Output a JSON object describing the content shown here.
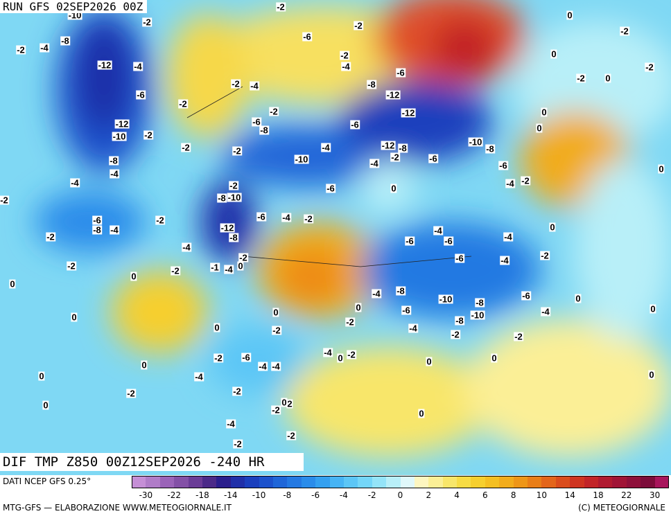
{
  "header": {
    "run": "RUN GFS 02SEP2026 00Z",
    "product": "DIF TMP Z850 00Z12SEP2026 -240 HR"
  },
  "footer": {
    "source": "DATI NCEP GFS 0.25°",
    "credit": "MTG-GFS — ELABORAZIONE WWW.METEOGIORNALE.IT",
    "copyright": "(C) METEOGIORNALE"
  },
  "colorbar": {
    "colors": [
      "#c58fd6",
      "#b07cc8",
      "#9a63b8",
      "#8350a6",
      "#6a3c96",
      "#4b2a88",
      "#2a1e8c",
      "#1f2fa8",
      "#1a3fbd",
      "#1c52cc",
      "#1f66d8",
      "#2479e2",
      "#2a8cea",
      "#34a0f0",
      "#47b4f4",
      "#5cc6f6",
      "#74d6f8",
      "#94e4f8",
      "#b8eff8",
      "#e0f8fa",
      "#fdf6c0",
      "#fbef96",
      "#f8e66a",
      "#f7dc45",
      "#f6cf2e",
      "#f4bf22",
      "#f2ac1c",
      "#ee9618",
      "#e97e18",
      "#e3651a",
      "#da4c1c",
      "#cf3420",
      "#c22428",
      "#b01a30",
      "#a01436",
      "#8e103a",
      "#7c0c3a",
      "#a8155c"
    ],
    "ticks": [
      -30,
      -22,
      -18,
      -14,
      -10,
      -8,
      -6,
      -4,
      -2,
      0,
      2,
      4,
      6,
      8,
      10,
      14,
      18,
      22,
      30
    ]
  },
  "map_labels": [
    -10,
    -2,
    -2,
    -2,
    -4,
    -8,
    -12,
    -4,
    -6,
    -2,
    -12,
    -10,
    -2,
    -2,
    -8,
    -4,
    -4,
    -6,
    -8,
    -4,
    -2,
    -2,
    -2,
    0,
    0,
    0,
    -2,
    -4,
    -2,
    -6,
    -8,
    -2,
    -10,
    -4,
    -2,
    -8,
    -10,
    -12,
    -8,
    -6,
    -4,
    -2,
    -4,
    -2,
    -2,
    -1,
    -4,
    0,
    -6,
    -2,
    -4,
    -2,
    -8,
    -6,
    -12,
    -12,
    -6,
    -12,
    -8,
    -2,
    -4,
    -6,
    0,
    -6,
    -10,
    -8,
    -6,
    -4,
    -2,
    -4,
    -6,
    -6,
    -6,
    -4,
    -4,
    -2,
    0,
    0,
    0,
    -2,
    -2,
    -2,
    0,
    0,
    0,
    0,
    0,
    0,
    -4,
    -6,
    -8,
    -10,
    -8,
    -10,
    -8,
    -4,
    -6,
    -4,
    -2,
    -2,
    0,
    0,
    0,
    -2,
    0,
    -2,
    0,
    -2,
    -6,
    -4,
    -4,
    -4,
    0,
    -2,
    -4,
    -2,
    -2,
    0,
    0,
    0,
    0,
    2,
    -2,
    0,
    -4,
    -2,
    -2,
    0,
    -2
  ]
}
